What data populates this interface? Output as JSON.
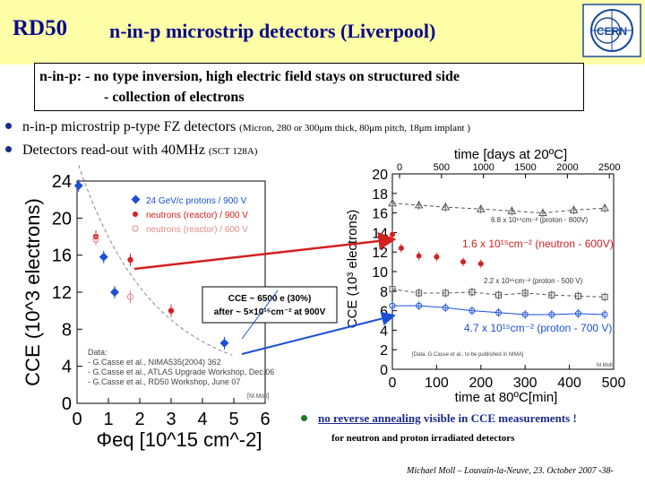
{
  "header": {
    "logo_text": "RD50",
    "title": "n-in-p microstrip detectors (Liverpool)",
    "cern_label": "CERN"
  },
  "box": {
    "line1": "n-in-p:  - no type inversion, high electric field stays on structured side",
    "line2": "- collection of electrons"
  },
  "bullets": [
    {
      "main": "n-in-p microstrip p-type FZ detectors",
      "detail": "(Micron, 280 or 300μm thick, 80μm pitch, 18μm implant )"
    },
    {
      "main": "Detectors read-out with 40MHz",
      "detail": "(SCT 128A)"
    }
  ],
  "left_chart": {
    "chart_data": {
      "type": "scatter",
      "title": "",
      "xlabel": "Φeq [10^15 cm^-2]",
      "ylabel": "CCE (10^3 electrons)",
      "xlim": [
        0,
        6
      ],
      "ylim": [
        0,
        24
      ],
      "x_ticks": [
        "0",
        "1",
        "2",
        "3",
        "4",
        "5",
        "6"
      ],
      "y_ticks": [
        "0",
        "4",
        "8",
        "12",
        "16",
        "20",
        "24"
      ],
      "series": [
        {
          "name": "24 GeV/c protons  /  900 V",
          "color": "#1a4fd6",
          "points": [
            [
              0.05,
              23.5
            ],
            [
              0.85,
              15.8
            ],
            [
              1.2,
              12
            ],
            [
              4.7,
              6.5
            ]
          ]
        },
        {
          "name": "neutrons (reactor) / 900 V",
          "color": "#d42020",
          "points": [
            [
              0.6,
              18
            ],
            [
              1.7,
              15.5
            ],
            [
              3.0,
              10
            ]
          ]
        },
        {
          "name": "neutrons (reactor) / 600 V",
          "color": "#e08a8a",
          "points": [
            [
              0.6,
              17.7
            ],
            [
              1.7,
              11.5
            ]
          ]
        }
      ],
      "legend_position": "top-right",
      "annotations": [
        "Data:",
        "- G.Casse et al., NIMA535(2004) 362",
        "- G.Casse et al., ATLAS Upgrade Workshop, Dec.06",
        "- G.Casse et al., RD50 Workshop, June 07",
        "[M.Moll]"
      ],
      "callout": [
        "CCE ~ 6500 e (30%)",
        "after ~ 5×10¹⁵cm⁻² at 900V"
      ]
    }
  },
  "right_chart": {
    "chart_data": {
      "type": "line",
      "title": "",
      "xlabel": "time at 80ºC[min]",
      "ylabel": "CCE (10³ electrons)",
      "top_axis_label": "time [days at 20ºC]",
      "xlim": [
        0,
        500
      ],
      "ylim": [
        0,
        20
      ],
      "x_ticks": [
        "0",
        "100",
        "200",
        "300",
        "400",
        "500"
      ],
      "top_ticks": [
        "0",
        "500",
        "1000",
        "1500",
        "2000",
        "2500"
      ],
      "y_ticks": [
        "0",
        "2",
        "4",
        "6",
        "8",
        "10",
        "12",
        "14",
        "16",
        "18",
        "20"
      ],
      "series": [
        {
          "name": "6.8 x 10¹⁴cm⁻² (proton - 800V)",
          "color": "#555555",
          "points": [
            [
              0,
              17
            ],
            [
              60,
              16.8
            ],
            [
              120,
              16.6
            ],
            [
              200,
              16.4
            ],
            [
              270,
              16.2
            ],
            [
              340,
              16
            ],
            [
              410,
              16.3
            ],
            [
              480,
              16.5
            ]
          ]
        },
        {
          "name": "1.6 x 10¹⁵cm⁻² (neutron - 600V)",
          "color": "#d42020",
          "points": [
            [
              0,
              13.8
            ],
            [
              20,
              12.4
            ],
            [
              60,
              11.6
            ],
            [
              100,
              11.5
            ],
            [
              160,
              11
            ],
            [
              200,
              10.8
            ]
          ]
        },
        {
          "name": "2.2 x 10¹⁵cm⁻² (proton - 500 V)",
          "color": "#555555",
          "points": [
            [
              0,
              8.2
            ],
            [
              60,
              7.8
            ],
            [
              120,
              7.8
            ],
            [
              180,
              7.9
            ],
            [
              240,
              7.6
            ],
            [
              300,
              7.8
            ],
            [
              360,
              7.6
            ],
            [
              420,
              7.5
            ],
            [
              480,
              7.4
            ]
          ]
        },
        {
          "name": "4.7 x 10¹⁵cm⁻² (proton - 700 V)",
          "color": "#1a4fd6",
          "points": [
            [
              0,
              6.5
            ],
            [
              60,
              6.5
            ],
            [
              120,
              6.3
            ],
            [
              180,
              6.0
            ],
            [
              240,
              5.8
            ],
            [
              300,
              5.6
            ],
            [
              360,
              5.6
            ],
            [
              420,
              5.7
            ],
            [
              480,
              5.6
            ]
          ]
        }
      ],
      "annotations": [
        "[Data: G.Casse et al., to be published in NIMA]",
        "M.Moll"
      ]
    }
  },
  "notes": {
    "main": "no reverse annealing",
    "rest": " visible in CCE measurements !",
    "line2": "for neutron and proton irradiated detectors"
  },
  "footer": {
    "text": "Michael Moll – Louvain-la-Neuve, 23. October 2007   -38-"
  }
}
